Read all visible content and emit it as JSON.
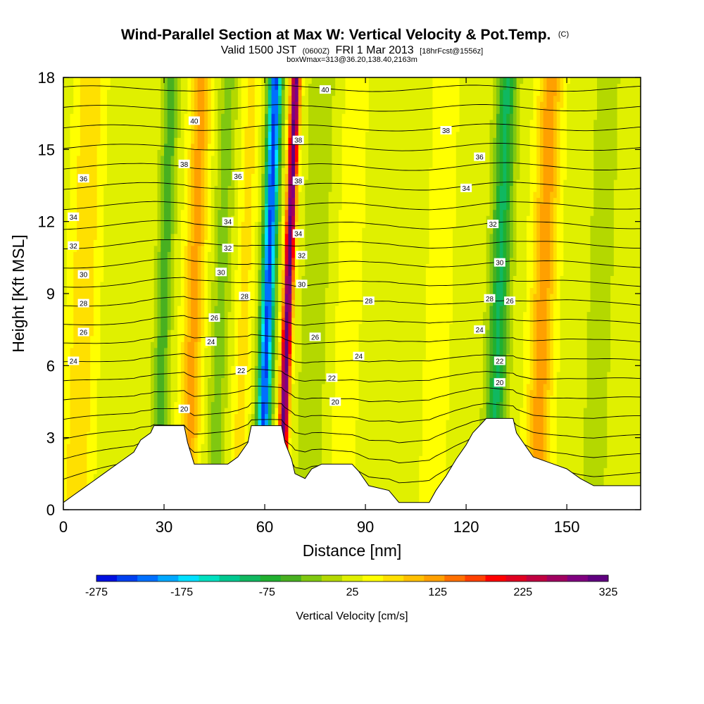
{
  "chart_data": {
    "type": "heatmap",
    "title_main": "Wind-Parallel Section at Max W: Vertical Velocity & Pot.Temp.",
    "title_mark": "(C)",
    "subtitle_a": "Valid 1500 JST",
    "subtitle_b": "(0600Z)",
    "subtitle_c": "FRI 1 Mar 2013",
    "subtitle_d": "[18hrFcst@1556z]",
    "subtitle_small": "boxWmax=313@36.20,138.40,2163m",
    "xlabel": "Distance [nm]",
    "ylabel": "Height [Kft MSL]",
    "xlim": [
      0,
      172
    ],
    "ylim": [
      0,
      18
    ],
    "x_ticks": [
      0,
      30,
      60,
      90,
      120,
      150
    ],
    "y_ticks": [
      0,
      3,
      6,
      9,
      12,
      15,
      18
    ],
    "colorbar": {
      "label": "Vertical Velocity [cm/s]",
      "tick_labels": [
        "-275",
        "-175",
        "-75",
        "25",
        "125",
        "225",
        "325"
      ],
      "tick_values": [
        -275,
        -175,
        -75,
        25,
        125,
        225,
        325
      ],
      "colors": [
        "#0010e0",
        "#0040f0",
        "#0070ff",
        "#00a8ff",
        "#00e0ff",
        "#00e0c0",
        "#00c890",
        "#10b860",
        "#20b030",
        "#48b020",
        "#80c810",
        "#b4d800",
        "#e0f000",
        "#ffff00",
        "#ffe000",
        "#ffc000",
        "#ffa000",
        "#ff7000",
        "#ff4000",
        "#ff0000",
        "#e00020",
        "#c00040",
        "#a00060",
        "#800080",
        "#600080"
      ]
    },
    "velocity_features": [
      {
        "x": 6,
        "w": 4,
        "amp": 60
      },
      {
        "x": 30,
        "w": 2.3,
        "amp": -80
      },
      {
        "x": 39,
        "w": 3,
        "amp": 95
      },
      {
        "x": 47,
        "w": 2.5,
        "amp": -55
      },
      {
        "x": 54,
        "w": 2.5,
        "amp": 45
      },
      {
        "x": 61,
        "w": 2,
        "amp": -275
      },
      {
        "x": 67,
        "w": 1.4,
        "amp": 300
      },
      {
        "x": 75,
        "w": 4,
        "amp": -35
      },
      {
        "x": 85,
        "w": 4,
        "amp": 25
      },
      {
        "x": 112,
        "w": 6,
        "amp": 15
      },
      {
        "x": 130,
        "w": 3,
        "amp": -120
      },
      {
        "x": 143,
        "w": 3.5,
        "amp": 100
      },
      {
        "x": 160,
        "w": 4,
        "amp": -30
      }
    ],
    "isentropes": {
      "levels": [
        20,
        21,
        22,
        23,
        24,
        25,
        26,
        27,
        28,
        29,
        30,
        31,
        32,
        33,
        34,
        35,
        36,
        37,
        38,
        39,
        40
      ],
      "labeled": [
        {
          "text": "20",
          "x": 36,
          "y": 4.2
        },
        {
          "text": "22",
          "x": 53,
          "y": 5.8
        },
        {
          "text": "24",
          "x": 44,
          "y": 7.0
        },
        {
          "text": "26",
          "x": 45,
          "y": 8.0
        },
        {
          "text": "28",
          "x": 54,
          "y": 8.9
        },
        {
          "text": "30",
          "x": 47,
          "y": 9.9
        },
        {
          "text": "32",
          "x": 49,
          "y": 10.9
        },
        {
          "text": "34",
          "x": 49,
          "y": 12.0
        },
        {
          "text": "36",
          "x": 52,
          "y": 13.9
        },
        {
          "text": "38",
          "x": 36,
          "y": 14.4
        },
        {
          "text": "40",
          "x": 39,
          "y": 16.2
        },
        {
          "text": "24",
          "x": 3,
          "y": 6.2
        },
        {
          "text": "26",
          "x": 6,
          "y": 7.4
        },
        {
          "text": "28",
          "x": 6,
          "y": 8.6
        },
        {
          "text": "30",
          "x": 6,
          "y": 9.8
        },
        {
          "text": "32",
          "x": 3,
          "y": 11.0
        },
        {
          "text": "34",
          "x": 3,
          "y": 12.2
        },
        {
          "text": "36",
          "x": 6,
          "y": 13.8
        },
        {
          "text": "40",
          "x": 78,
          "y": 17.5
        },
        {
          "text": "38",
          "x": 70,
          "y": 15.4
        },
        {
          "text": "38",
          "x": 70,
          "y": 13.7
        },
        {
          "text": "34",
          "x": 70,
          "y": 11.5
        },
        {
          "text": "32",
          "x": 71,
          "y": 10.6
        },
        {
          "text": "30",
          "x": 71,
          "y": 9.4
        },
        {
          "text": "26",
          "x": 75,
          "y": 7.2
        },
        {
          "text": "24",
          "x": 88,
          "y": 6.4
        },
        {
          "text": "22",
          "x": 80,
          "y": 5.5
        },
        {
          "text": "20",
          "x": 81,
          "y": 4.5
        },
        {
          "text": "28",
          "x": 91,
          "y": 8.7
        },
        {
          "text": "38",
          "x": 114,
          "y": 15.8
        },
        {
          "text": "36",
          "x": 124,
          "y": 14.7
        },
        {
          "text": "34",
          "x": 120,
          "y": 13.4
        },
        {
          "text": "32",
          "x": 128,
          "y": 11.9
        },
        {
          "text": "30",
          "x": 130,
          "y": 10.3
        },
        {
          "text": "28",
          "x": 127,
          "y": 8.8
        },
        {
          "text": "26",
          "x": 133,
          "y": 8.7
        },
        {
          "text": "24",
          "x": 124,
          "y": 7.5
        },
        {
          "text": "22",
          "x": 130,
          "y": 6.2
        },
        {
          "text": "20",
          "x": 130,
          "y": 5.3
        }
      ]
    },
    "terrain_profile": [
      [
        0,
        0.3
      ],
      [
        3,
        0.6
      ],
      [
        6,
        0.9
      ],
      [
        9,
        1.2
      ],
      [
        12,
        1.5
      ],
      [
        15,
        1.8
      ],
      [
        18,
        2.1
      ],
      [
        21,
        2.4
      ],
      [
        23,
        2.9
      ],
      [
        26,
        3.2
      ],
      [
        27,
        3.5
      ],
      [
        36,
        3.5
      ],
      [
        37,
        2.8
      ],
      [
        39,
        1.9
      ],
      [
        49,
        1.9
      ],
      [
        52,
        2.2
      ],
      [
        55,
        2.8
      ],
      [
        56,
        3.5
      ],
      [
        65,
        3.5
      ],
      [
        66,
        2.8
      ],
      [
        68,
        2.1
      ],
      [
        69,
        1.5
      ],
      [
        72,
        1.3
      ],
      [
        74,
        1.7
      ],
      [
        77,
        1.9
      ],
      [
        86,
        1.9
      ],
      [
        88,
        1.6
      ],
      [
        91,
        1.0
      ],
      [
        97,
        0.8
      ],
      [
        100,
        0.3
      ],
      [
        109,
        0.3
      ],
      [
        111,
        0.8
      ],
      [
        114,
        1.4
      ],
      [
        117,
        2.1
      ],
      [
        120,
        2.7
      ],
      [
        122,
        3.2
      ],
      [
        124,
        3.5
      ],
      [
        126,
        3.8
      ],
      [
        134,
        3.8
      ],
      [
        135,
        3.2
      ],
      [
        137,
        2.8
      ],
      [
        140,
        2.2
      ],
      [
        146,
        1.9
      ],
      [
        150,
        1.7
      ],
      [
        154,
        1.3
      ],
      [
        158,
        1.0
      ],
      [
        163,
        1.0
      ],
      [
        166,
        1.0
      ],
      [
        172,
        1.0
      ]
    ]
  }
}
